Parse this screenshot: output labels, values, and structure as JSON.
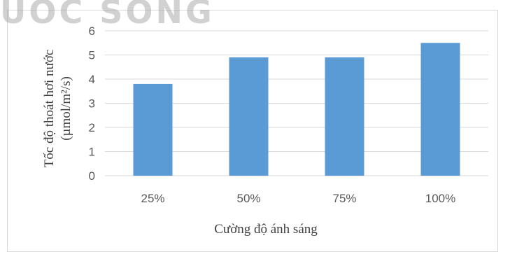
{
  "watermark": "UOC SONG",
  "chart_data": {
    "type": "bar",
    "title": "",
    "xlabel": "Cường độ ánh sáng",
    "ylabel_line1": "Tốc độ thoát hơi nước",
    "ylabel_line2": "(µmol/m²/s)",
    "categories": [
      "25%",
      "50%",
      "75%",
      "100%"
    ],
    "values": [
      3.8,
      4.9,
      4.9,
      5.5
    ],
    "ylim": [
      0,
      6
    ],
    "yticks": [
      0,
      1,
      2,
      3,
      4,
      5,
      6
    ],
    "grid": true,
    "legend": "none",
    "bar_color": "#5b9bd5",
    "grid_color": "#d9d9d9"
  }
}
